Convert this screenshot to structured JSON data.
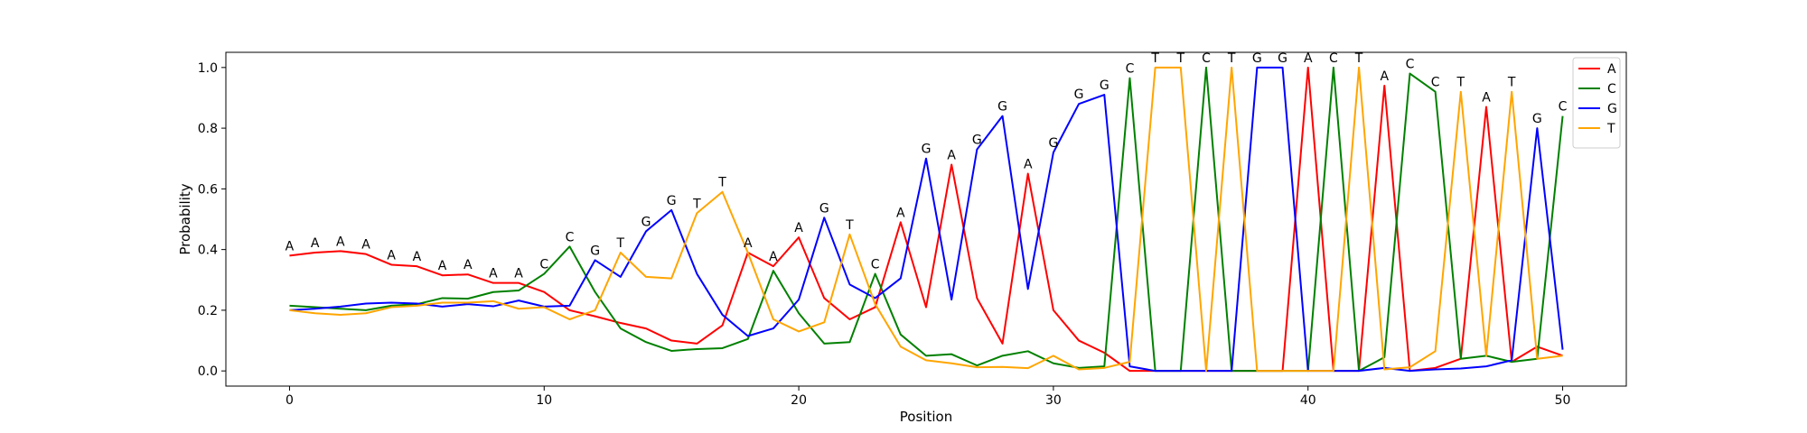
{
  "chart_data": {
    "type": "line",
    "title": "",
    "xlabel": "Position",
    "ylabel": "Probability",
    "xlim": [
      -2.5,
      52.5
    ],
    "ylim": [
      -0.05,
      1.05
    ],
    "xticks": [
      0,
      10,
      20,
      30,
      40,
      50
    ],
    "yticks": [
      0.0,
      0.2,
      0.4,
      0.6,
      0.8,
      1.0
    ],
    "xtick_labels": [
      "0",
      "10",
      "20",
      "30",
      "40",
      "50"
    ],
    "ytick_labels": [
      "0.0",
      "0.2",
      "0.4",
      "0.6",
      "0.8",
      "1.0"
    ],
    "grid": false,
    "legend_position": "top-right",
    "x": [
      0,
      1,
      2,
      3,
      4,
      5,
      6,
      7,
      8,
      9,
      10,
      11,
      12,
      13,
      14,
      15,
      16,
      17,
      18,
      19,
      20,
      21,
      22,
      23,
      24,
      25,
      26,
      27,
      28,
      29,
      30,
      31,
      32,
      33,
      34,
      35,
      36,
      37,
      38,
      39,
      40,
      41,
      42,
      43,
      44,
      45,
      46,
      47,
      48,
      49,
      50
    ],
    "series": [
      {
        "name": "A",
        "color": "#ff0000",
        "values": [
          0.38,
          0.39,
          0.395,
          0.385,
          0.35,
          0.345,
          0.315,
          0.318,
          0.29,
          0.29,
          0.26,
          0.2,
          0.18,
          0.158,
          0.14,
          0.1,
          0.09,
          0.15,
          0.39,
          0.345,
          0.44,
          0.24,
          0.17,
          0.21,
          0.49,
          0.21,
          0.68,
          0.24,
          0.09,
          0.65,
          0.2,
          0.1,
          0.06,
          0.0,
          0.0,
          0.0,
          0.0,
          0.0,
          0.0,
          0.0,
          1.0,
          0.0,
          0.0,
          0.94,
          0.0,
          0.01,
          0.04,
          0.87,
          0.03,
          0.08,
          0.05
        ]
      },
      {
        "name": "C",
        "color": "#008000",
        "values": [
          0.215,
          0.21,
          0.205,
          0.2,
          0.215,
          0.22,
          0.24,
          0.238,
          0.26,
          0.265,
          0.32,
          0.41,
          0.26,
          0.14,
          0.095,
          0.066,
          0.072,
          0.075,
          0.105,
          0.33,
          0.19,
          0.09,
          0.095,
          0.32,
          0.12,
          0.05,
          0.055,
          0.018,
          0.05,
          0.065,
          0.025,
          0.01,
          0.015,
          0.965,
          0.0,
          0.0,
          1.0,
          0.0,
          0.0,
          0.0,
          0.0,
          1.0,
          0.0,
          0.045,
          0.98,
          0.92,
          0.04,
          0.05,
          0.03,
          0.04,
          0.84
        ]
      },
      {
        "name": "G",
        "color": "#0000ff",
        "values": [
          0.2,
          0.205,
          0.212,
          0.222,
          0.225,
          0.222,
          0.212,
          0.22,
          0.213,
          0.232,
          0.212,
          0.215,
          0.365,
          0.31,
          0.46,
          0.53,
          0.32,
          0.185,
          0.115,
          0.14,
          0.235,
          0.505,
          0.285,
          0.24,
          0.305,
          0.7,
          0.235,
          0.73,
          0.84,
          0.27,
          0.72,
          0.88,
          0.91,
          0.015,
          0.0,
          0.0,
          0.0,
          0.0,
          1.0,
          1.0,
          0.0,
          0.0,
          0.0,
          0.01,
          0.0,
          0.005,
          0.008,
          0.015,
          0.035,
          0.8,
          0.07
        ]
      },
      {
        "name": "T",
        "color": "#ffa500",
        "values": [
          0.2,
          0.19,
          0.185,
          0.19,
          0.21,
          0.215,
          0.225,
          0.225,
          0.23,
          0.205,
          0.21,
          0.17,
          0.2,
          0.39,
          0.31,
          0.305,
          0.52,
          0.59,
          0.39,
          0.17,
          0.13,
          0.16,
          0.45,
          0.22,
          0.08,
          0.035,
          0.025,
          0.012,
          0.013,
          0.009,
          0.05,
          0.005,
          0.01,
          0.03,
          1.0,
          1.0,
          0.0,
          1.0,
          0.0,
          0.0,
          0.0,
          0.0,
          1.0,
          0.005,
          0.012,
          0.065,
          0.92,
          0.05,
          0.92,
          0.04,
          0.05
        ]
      }
    ],
    "peak_labels": [
      "A",
      "A",
      "A",
      "A",
      "A",
      "A",
      "A",
      "A",
      "A",
      "A",
      "C",
      "C",
      "G",
      "T",
      "G",
      "G",
      "T",
      "T",
      "A",
      "A",
      "A",
      "G",
      "T",
      "C",
      "A",
      "G",
      "A",
      "G",
      "G",
      "A",
      "G",
      "G",
      "G",
      "C",
      "T",
      "T",
      "C",
      "T",
      "G",
      "G",
      "A",
      "C",
      "T",
      "A",
      "C",
      "C",
      "T",
      "A",
      "T",
      "G",
      "C"
    ]
  }
}
